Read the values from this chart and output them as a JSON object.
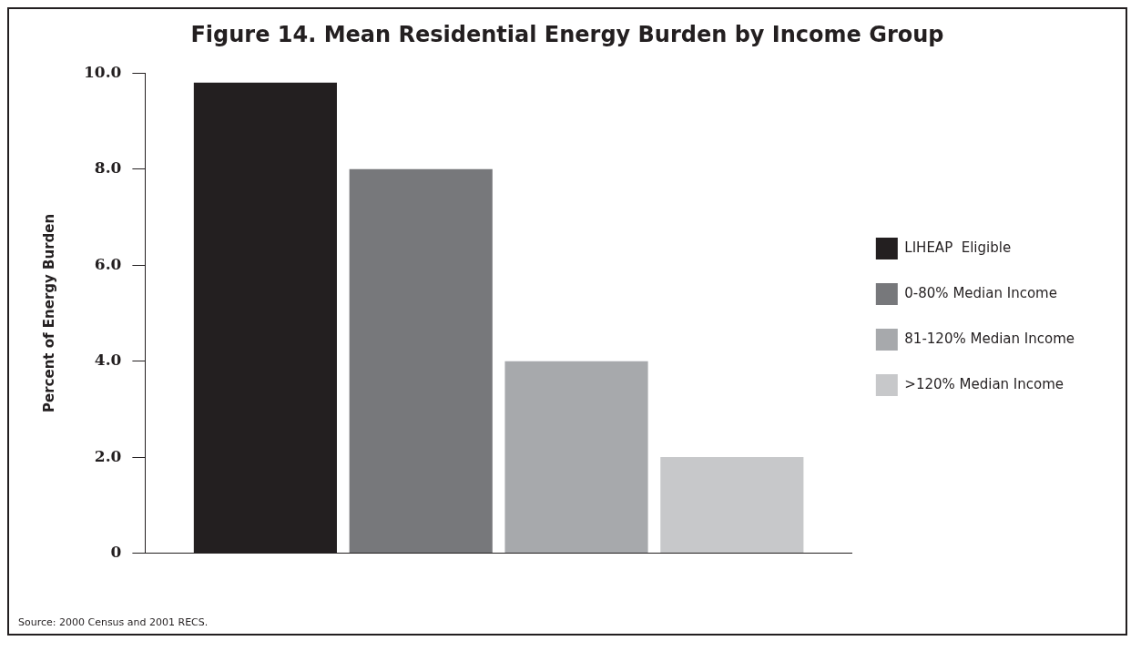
{
  "chart_data": {
    "type": "bar",
    "title": "Figure 14. Mean Residential Energy Burden by Income Group",
    "ylabel": "Percent of Energy Burden",
    "categories": [
      null
    ],
    "series": [
      {
        "name": "LIHEAP  Eligible",
        "color": "#231f20",
        "values": [
          9.8
        ]
      },
      {
        "name": "0-80% Median Income",
        "color": "#77787b",
        "values": [
          8.0
        ]
      },
      {
        "name": "81-120% Median Income",
        "color": "#a7a9ac",
        "values": [
          4.0
        ]
      },
      {
        "name": ">120% Median Income",
        "color": "#c7c8ca",
        "values": [
          2.0
        ]
      }
    ],
    "ylim": [
      0,
      10
    ],
    "yticks": [
      0,
      {
        "value": 2,
        "label": "2.0"
      },
      {
        "value": 4,
        "label": "4.0"
      },
      {
        "value": 6,
        "label": "6.0"
      },
      {
        "value": 8,
        "label": "8.0"
      },
      {
        "value": 10,
        "label": "10.0"
      }
    ],
    "grid": false,
    "legend": "right",
    "annotations": [
      "Source: 2000 Census and 2001 RECS."
    ]
  }
}
